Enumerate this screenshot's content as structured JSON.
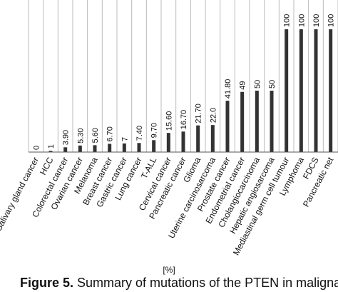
{
  "chart_data": {
    "type": "bar",
    "categories": [
      "Salivary gland cancer",
      "HCC",
      "Colorectal cancer",
      "Ovarian cancer",
      "Melanoma",
      "Breast cancer",
      "Gastric cancer",
      "Lung cancer",
      "T-ALL",
      "Cervical cancer",
      "Pancreatic cancer",
      "Glioma",
      "Uterine carcinosarcoma",
      "Prostate cancer",
      "Endometrial cancer",
      "Cholangiocarcinoma",
      "Hepatic angiosarcoma",
      "Mediastinal germ cell tumour",
      "Lymphoma",
      "FDCS",
      "Pancreatic net"
    ],
    "values": [
      0,
      1,
      3.9,
      5.3,
      5.6,
      6.7,
      7,
      7.4,
      9.7,
      15.6,
      16.7,
      21.7,
      22.0,
      41.8,
      49,
      50,
      50,
      100,
      100,
      100,
      100
    ],
    "value_labels": [
      "0",
      "1",
      "3.90",
      "5.30",
      "5.60",
      "6.70",
      "7",
      "7.40",
      "9.70",
      "15.60",
      "16.70",
      "21.70",
      "22.0",
      "41.80",
      "49",
      "50",
      "50",
      "100",
      "100",
      "100",
      "100"
    ],
    "xlabel": "[%]",
    "ylim": [
      0,
      100
    ],
    "grid": true,
    "bar_color": "#333333",
    "grid_color": "#bbbbbb"
  },
  "caption": {
    "label": "Figure 5.",
    "text": " Summary of mutations of the PTEN in malignant"
  }
}
